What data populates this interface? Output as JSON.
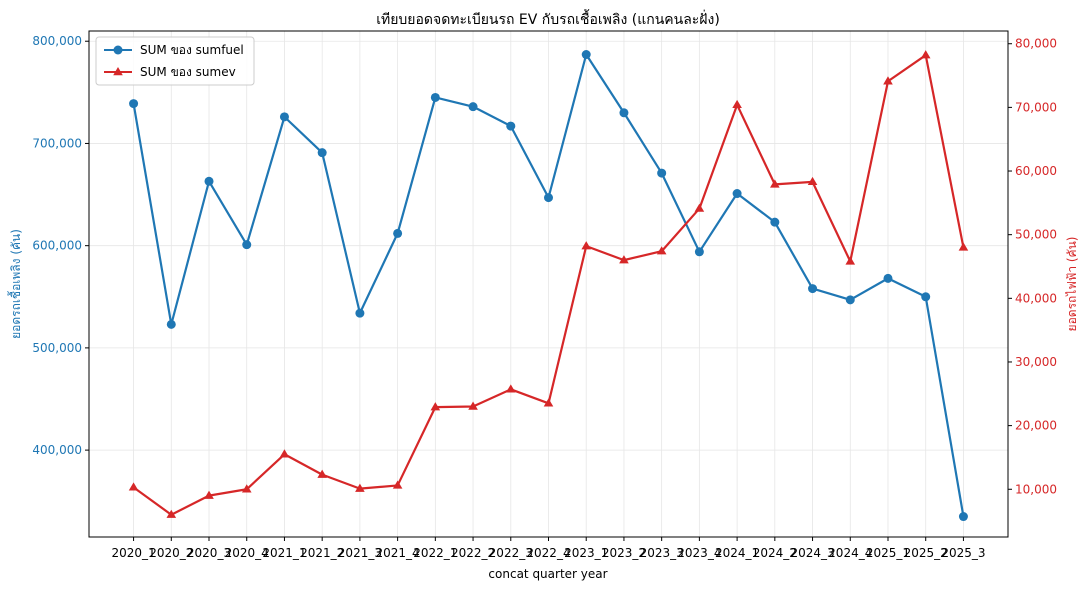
{
  "colors": {
    "fuel": "#1f77b4",
    "ev": "#d62728",
    "grid": "#e6e6e6",
    "axis": "#000000",
    "background": "#ffffff"
  },
  "chart_data": {
    "type": "line",
    "title": "เทียบยอดจดทะเบียนรถ EV กับรถเชื้อเพลิง (แกนคนละฝั่ง)",
    "xlabel": "concat quarter year",
    "ylabel_left": "ยอดรถเชื้อเพลิง (คัน)",
    "ylabel_right": "ยอดรถไฟฟ้า (คัน)",
    "ylim_left": [
      315000,
      810000
    ],
    "ylim_right": [
      2500,
      82000
    ],
    "yticks_left": [
      400000,
      500000,
      600000,
      700000,
      800000
    ],
    "yticks_left_labels": [
      "400,000",
      "500,000",
      "600,000",
      "700,000",
      "800,000"
    ],
    "yticks_right": [
      10000,
      20000,
      30000,
      40000,
      50000,
      60000,
      70000,
      80000
    ],
    "yticks_right_labels": [
      "10,000",
      "20,000",
      "30,000",
      "40,000",
      "50,000",
      "60,000",
      "70,000",
      "80,000"
    ],
    "grid": true,
    "legend_position": "top-left",
    "categories": [
      "2020_1",
      "2020_2",
      "2020_3",
      "2020_4",
      "2021_1",
      "2021_2",
      "2021_3",
      "2021_4",
      "2022_1",
      "2022_2",
      "2022_3",
      "2022_4",
      "2023_1",
      "2023_2",
      "2023_3",
      "2023_4",
      "2024_1",
      "2024_2",
      "2024_3",
      "2024_4",
      "2025_1",
      "2025_2",
      "2025_3"
    ],
    "series": [
      {
        "name": "SUM ของ sumfuel",
        "axis": "left",
        "marker": "circle",
        "values": [
          739000,
          523000,
          663000,
          601000,
          726000,
          691000,
          534000,
          612000,
          745000,
          736000,
          717000,
          647000,
          787000,
          730000,
          671000,
          594000,
          651000,
          623000,
          558000,
          547000,
          568000,
          550000,
          335000
        ]
      },
      {
        "name": "SUM ของ sumev",
        "axis": "right",
        "marker": "triangle",
        "values": [
          10300,
          6000,
          9000,
          10000,
          15500,
          12300,
          10100,
          10600,
          22900,
          23000,
          25700,
          23500,
          48200,
          46000,
          47400,
          54100,
          70400,
          57900,
          58300,
          45800,
          74100,
          78200,
          48000
        ]
      }
    ]
  }
}
